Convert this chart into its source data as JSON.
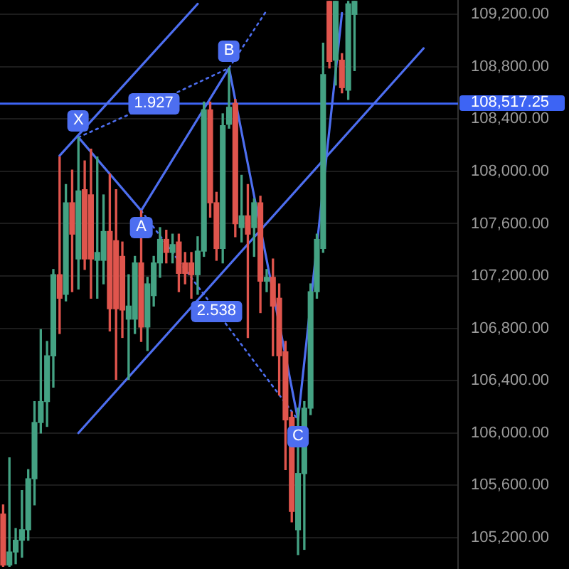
{
  "chart_data": {
    "type": "candlestick",
    "categories": [
      null,
      null,
      null,
      null,
      null,
      null,
      null,
      null,
      null,
      null,
      null,
      null,
      null,
      null,
      null,
      null,
      null,
      null,
      null,
      null,
      null,
      null,
      null,
      null,
      null,
      null,
      null,
      null,
      null,
      null,
      null,
      null,
      null,
      null,
      null,
      null,
      null,
      null,
      null,
      null,
      null,
      null,
      null,
      null,
      null,
      null,
      null,
      null,
      null,
      null,
      null,
      null,
      null,
      null,
      null,
      null,
      null,
      null,
      null,
      null,
      null,
      null,
      null,
      null,
      null,
      null,
      null,
      null,
      null,
      null,
      null,
      null,
      null
    ],
    "ohlc": [
      [
        105380,
        105450,
        104980,
        104990
      ],
      [
        104990,
        105810,
        104980,
        105090
      ],
      [
        105090,
        105270,
        105000,
        105180
      ],
      [
        105180,
        105560,
        105050,
        105260
      ],
      [
        105260,
        105720,
        105180,
        105650
      ],
      [
        105650,
        106240,
        105450,
        106080
      ],
      [
        106080,
        106790,
        106000,
        106240
      ],
      [
        106240,
        106700,
        106050,
        106590
      ],
      [
        106590,
        107250,
        106350,
        107210
      ],
      [
        107210,
        108110,
        106760,
        107030
      ],
      [
        107060,
        107900,
        107010,
        107760
      ],
      [
        107760,
        108010,
        107080,
        107520
      ],
      [
        107330,
        108260,
        107100,
        107850
      ],
      [
        107860,
        108080,
        107250,
        107330
      ],
      [
        107820,
        108170,
        107030,
        107330
      ],
      [
        107320,
        108110,
        107030,
        107380
      ],
      [
        107320,
        107820,
        107140,
        107540
      ],
      [
        107540,
        107980,
        106780,
        106950
      ],
      [
        107470,
        107860,
        106410,
        106950
      ],
      [
        107350,
        107460,
        106730,
        106940
      ],
      [
        106870,
        107210,
        106410,
        106970
      ],
      [
        106870,
        107350,
        106760,
        107300
      ],
      [
        107300,
        107700,
        106700,
        106810
      ],
      [
        106810,
        107190,
        106630,
        107140
      ],
      [
        107050,
        107350,
        106970,
        107300
      ],
      [
        107300,
        107570,
        107190,
        107480
      ],
      [
        107480,
        107550,
        107300,
        107380
      ],
      [
        107380,
        107520,
        107300,
        107440
      ],
      [
        107460,
        107520,
        107080,
        107220
      ],
      [
        107300,
        107380,
        107140,
        107220
      ],
      [
        107300,
        107380,
        107030,
        107210
      ],
      [
        107210,
        107500,
        107060,
        107390
      ],
      [
        107390,
        108530,
        107350,
        108470
      ],
      [
        108470,
        108530,
        107650,
        107760
      ],
      [
        107760,
        107840,
        107320,
        107410
      ],
      [
        107410,
        108440,
        107300,
        108350
      ],
      [
        108360,
        108790,
        108330,
        108490
      ],
      [
        108520,
        108550,
        107500,
        107600
      ],
      [
        107570,
        107970,
        107460,
        107660
      ],
      [
        107660,
        107900,
        106730,
        107520
      ],
      [
        107570,
        107790,
        107350,
        107760
      ],
      [
        107760,
        107810,
        106920,
        107160
      ],
      [
        107160,
        107250,
        107080,
        107190
      ],
      [
        107190,
        107330,
        106590,
        106970
      ],
      [
        107030,
        107140,
        106290,
        106590
      ],
      [
        106620,
        106700,
        105720,
        106100
      ],
      [
        106120,
        106160,
        105320,
        105400
      ],
      [
        105260,
        106190,
        105070,
        105690
      ],
      [
        105690,
        106240,
        105110,
        106190
      ],
      [
        106190,
        107140,
        106140,
        107080
      ],
      [
        107080,
        107520,
        107030,
        107480
      ],
      [
        107410,
        108980,
        107380,
        108740
      ],
      [
        109300,
        109300,
        108790,
        108840
      ],
      [
        108850,
        109300,
        108660,
        109300
      ],
      [
        108850,
        108900,
        108600,
        108640
      ],
      [
        108620,
        109300,
        108550,
        109280
      ],
      [
        109200,
        109300,
        108770,
        109300
      ],
      null,
      null,
      null,
      null,
      null,
      null,
      null,
      null,
      null,
      null,
      null,
      null,
      null,
      null,
      null,
      null
    ],
    "colors": [
      "#e0554d",
      "#44a283",
      "#44a283",
      "#44a283",
      "#44a283",
      "#44a283",
      "#44a283",
      "#44a283",
      "#44a283",
      "#e0554d",
      "#44a283",
      "#e0554d",
      "#44a283",
      "#e0554d",
      "#e0554d",
      "#44a283",
      "#44a283",
      "#e0554d",
      "#e0554d",
      "#e0554d",
      "#44a283",
      "#44a283",
      "#e0554d",
      "#44a283",
      "#44a283",
      "#44a283",
      "#e0554d",
      "#44a283",
      "#e0554d",
      "#e0554d",
      "#e0554d",
      "#44a283",
      "#44a283",
      "#e0554d",
      "#e0554d",
      "#44a283",
      "#44a283",
      "#e0554d",
      "#44a283",
      "#e0554d",
      "#44a283",
      "#e0554d",
      "#44a283",
      "#e0554d",
      "#e0554d",
      "#e0554d",
      "#e0554d",
      "#44a283",
      "#44a283",
      "#44a283",
      "#44a283",
      "#44a283",
      "#e0554d",
      "#44a283",
      "#e0554d",
      "#44a283",
      "#44a283",
      null,
      null,
      null,
      null,
      null,
      null,
      null,
      null,
      null,
      null,
      null,
      null,
      null,
      null,
      null,
      null
    ],
    "series": [
      {
        "type": "line",
        "color": "#4d6ef0",
        "line_style": "solid",
        "values": [
          null,
          null,
          null,
          null,
          null,
          null,
          null,
          null,
          null,
          null,
          null,
          null,
          108260,
          null,
          null,
          null,
          null,
          null,
          null,
          null,
          null,
          null,
          107700,
          null,
          null,
          null,
          null,
          null,
          null,
          null,
          null,
          null,
          null,
          null,
          null,
          null,
          108790,
          null,
          null,
          null,
          null,
          null,
          null,
          null,
          null,
          null,
          null,
          106100,
          null,
          null,
          null,
          null,
          null,
          null,
          109210,
          null,
          null,
          null,
          null,
          null,
          null,
          null,
          null,
          null,
          null,
          null,
          null,
          null,
          null,
          null,
          null,
          null,
          null
        ]
      },
      {
        "type": "line",
        "color": "#4d6ef0",
        "line_style": "solid",
        "values": [
          null,
          null,
          null,
          null,
          null,
          null,
          null,
          null,
          null,
          108120,
          null,
          null,
          null,
          null,
          null,
          null,
          null,
          null,
          null,
          null,
          null,
          null,
          null,
          null,
          null,
          null,
          null,
          null,
          null,
          null,
          null,
          109280,
          null,
          null,
          null,
          null,
          null,
          null,
          null,
          null,
          null,
          null,
          null,
          null,
          null,
          null,
          null,
          null,
          null,
          null,
          null,
          null,
          null,
          null,
          null,
          null,
          null,
          null,
          null,
          null,
          null,
          null,
          null,
          null,
          null,
          null,
          null,
          null,
          null,
          null,
          null,
          null,
          null
        ]
      },
      {
        "type": "line",
        "color": "#4d6ef0",
        "line_style": "solid",
        "values": [
          null,
          null,
          null,
          null,
          null,
          null,
          null,
          null,
          null,
          null,
          null,
          null,
          106000,
          null,
          null,
          null,
          null,
          null,
          null,
          null,
          null,
          null,
          null,
          null,
          null,
          null,
          null,
          null,
          null,
          null,
          null,
          null,
          null,
          null,
          null,
          null,
          null,
          null,
          null,
          null,
          null,
          null,
          null,
          null,
          null,
          null,
          null,
          null,
          null,
          null,
          null,
          null,
          null,
          null,
          null,
          null,
          null,
          null,
          null,
          null,
          null,
          null,
          null,
          null,
          null,
          null,
          null,
          108940,
          null,
          null,
          null,
          null,
          null
        ]
      },
      {
        "type": "line",
        "color": "#4d6ef0",
        "line_style": "dotted",
        "values": [
          null,
          null,
          null,
          null,
          null,
          null,
          null,
          null,
          null,
          null,
          null,
          null,
          108260,
          null,
          null,
          null,
          null,
          null,
          null,
          null,
          null,
          null,
          null,
          null,
          108520,
          null,
          null,
          null,
          null,
          null,
          null,
          null,
          null,
          null,
          null,
          null,
          108790,
          null,
          null,
          null,
          null,
          null,
          null,
          null,
          null,
          null,
          null,
          null,
          null,
          null,
          null,
          null,
          null,
          null,
          null,
          null,
          null,
          null,
          null,
          null,
          null,
          null,
          null,
          null,
          null,
          null,
          null,
          null,
          null,
          null,
          null,
          null,
          null
        ]
      },
      {
        "type": "line",
        "color": "#4d6ef0",
        "line_style": "dotted",
        "values": [
          null,
          null,
          null,
          null,
          null,
          null,
          null,
          null,
          null,
          null,
          null,
          null,
          null,
          null,
          null,
          null,
          null,
          null,
          null,
          null,
          null,
          null,
          107700,
          null,
          null,
          null,
          null,
          null,
          null,
          null,
          null,
          null,
          null,
          null,
          106930,
          null,
          null,
          null,
          null,
          null,
          null,
          null,
          null,
          null,
          null,
          null,
          null,
          106100,
          null,
          null,
          null,
          null,
          null,
          null,
          null,
          null,
          null,
          null,
          null,
          null,
          null,
          null,
          null,
          null,
          null,
          null,
          null,
          null,
          null,
          null,
          null,
          null,
          null
        ]
      },
      {
        "type": "line",
        "color": "#4d6ef0",
        "line_style": "dotted",
        "values": [
          null,
          null,
          null,
          null,
          null,
          null,
          null,
          null,
          null,
          null,
          null,
          null,
          null,
          null,
          null,
          null,
          null,
          null,
          null,
          null,
          null,
          null,
          null,
          null,
          null,
          null,
          null,
          null,
          null,
          null,
          null,
          null,
          null,
          null,
          null,
          null,
          108790,
          null,
          null,
          null,
          null,
          null,
          109230,
          null,
          null,
          null,
          null,
          null,
          null,
          null,
          null,
          null,
          null,
          null,
          null,
          null,
          null,
          null,
          null,
          null,
          null,
          null,
          null,
          null,
          null,
          null,
          null,
          null,
          null,
          null,
          null,
          null,
          null
        ]
      }
    ],
    "ylim": [
      104960,
      109310
    ],
    "yticks": [
      {
        "value": 105200,
        "label": "105,200.00"
      },
      {
        "value": 105600,
        "label": "105,600.00"
      },
      {
        "value": 106000,
        "label": "106,000.00"
      },
      {
        "value": 106400,
        "label": "106,400.00"
      },
      {
        "value": 106800,
        "label": "106,800.00"
      },
      {
        "value": 107200,
        "label": "107,200.00"
      },
      {
        "value": 107600,
        "label": "107,600.00"
      },
      {
        "value": 108000,
        "label": "108,000.00"
      },
      {
        "value": 108400,
        "label": "108,400.00"
      },
      {
        "value": 108800,
        "label": "108,800.00"
      },
      {
        "value": 109200,
        "label": "109,200.00"
      }
    ],
    "ref_lines": [
      {
        "axis": "y",
        "value": 108517.25,
        "label": "108,517.25",
        "color": "#3d64f4"
      }
    ],
    "annotations": [
      {
        "text": "X",
        "y": 108260
      },
      {
        "text": "A",
        "y": 107700
      },
      {
        "text": "B",
        "y": 108790
      },
      {
        "text": "C",
        "y": 106100
      },
      {
        "text": "1.927",
        "y": 108520
      },
      {
        "text": "2.538",
        "y": 106930
      }
    ],
    "grid": "y",
    "legend": false,
    "tick_labels": "y",
    "marker": "none"
  }
}
